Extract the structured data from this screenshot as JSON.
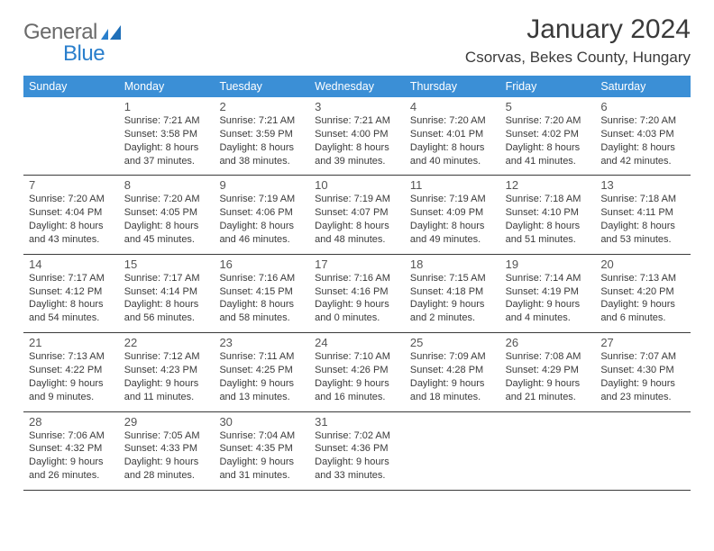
{
  "logo": {
    "text1": "General",
    "text2": "Blue"
  },
  "title": "January 2024",
  "location": "Csorvas, Bekes County, Hungary",
  "dayHeaders": [
    "Sunday",
    "Monday",
    "Tuesday",
    "Wednesday",
    "Thursday",
    "Friday",
    "Saturday"
  ],
  "style": {
    "headerBg": "#3b8fd6",
    "headerFg": "#ffffff",
    "rowBorder": "#3b3b3b",
    "textColor": "#3a3a3a",
    "dayNumColor": "#555555",
    "logoGray": "#6a6a6a",
    "logoBlue": "#2a7fcc",
    "titleFontSize": 30,
    "locationFontSize": 17,
    "headerFontSize": 12.5,
    "bodyFontSize": 11
  },
  "weeks": [
    [
      {
        "n": "",
        "lines": []
      },
      {
        "n": "1",
        "lines": [
          "Sunrise: 7:21 AM",
          "Sunset: 3:58 PM",
          "Daylight: 8 hours",
          "and 37 minutes."
        ]
      },
      {
        "n": "2",
        "lines": [
          "Sunrise: 7:21 AM",
          "Sunset: 3:59 PM",
          "Daylight: 8 hours",
          "and 38 minutes."
        ]
      },
      {
        "n": "3",
        "lines": [
          "Sunrise: 7:21 AM",
          "Sunset: 4:00 PM",
          "Daylight: 8 hours",
          "and 39 minutes."
        ]
      },
      {
        "n": "4",
        "lines": [
          "Sunrise: 7:20 AM",
          "Sunset: 4:01 PM",
          "Daylight: 8 hours",
          "and 40 minutes."
        ]
      },
      {
        "n": "5",
        "lines": [
          "Sunrise: 7:20 AM",
          "Sunset: 4:02 PM",
          "Daylight: 8 hours",
          "and 41 minutes."
        ]
      },
      {
        "n": "6",
        "lines": [
          "Sunrise: 7:20 AM",
          "Sunset: 4:03 PM",
          "Daylight: 8 hours",
          "and 42 minutes."
        ]
      }
    ],
    [
      {
        "n": "7",
        "lines": [
          "Sunrise: 7:20 AM",
          "Sunset: 4:04 PM",
          "Daylight: 8 hours",
          "and 43 minutes."
        ]
      },
      {
        "n": "8",
        "lines": [
          "Sunrise: 7:20 AM",
          "Sunset: 4:05 PM",
          "Daylight: 8 hours",
          "and 45 minutes."
        ]
      },
      {
        "n": "9",
        "lines": [
          "Sunrise: 7:19 AM",
          "Sunset: 4:06 PM",
          "Daylight: 8 hours",
          "and 46 minutes."
        ]
      },
      {
        "n": "10",
        "lines": [
          "Sunrise: 7:19 AM",
          "Sunset: 4:07 PM",
          "Daylight: 8 hours",
          "and 48 minutes."
        ]
      },
      {
        "n": "11",
        "lines": [
          "Sunrise: 7:19 AM",
          "Sunset: 4:09 PM",
          "Daylight: 8 hours",
          "and 49 minutes."
        ]
      },
      {
        "n": "12",
        "lines": [
          "Sunrise: 7:18 AM",
          "Sunset: 4:10 PM",
          "Daylight: 8 hours",
          "and 51 minutes."
        ]
      },
      {
        "n": "13",
        "lines": [
          "Sunrise: 7:18 AM",
          "Sunset: 4:11 PM",
          "Daylight: 8 hours",
          "and 53 minutes."
        ]
      }
    ],
    [
      {
        "n": "14",
        "lines": [
          "Sunrise: 7:17 AM",
          "Sunset: 4:12 PM",
          "Daylight: 8 hours",
          "and 54 minutes."
        ]
      },
      {
        "n": "15",
        "lines": [
          "Sunrise: 7:17 AM",
          "Sunset: 4:14 PM",
          "Daylight: 8 hours",
          "and 56 minutes."
        ]
      },
      {
        "n": "16",
        "lines": [
          "Sunrise: 7:16 AM",
          "Sunset: 4:15 PM",
          "Daylight: 8 hours",
          "and 58 minutes."
        ]
      },
      {
        "n": "17",
        "lines": [
          "Sunrise: 7:16 AM",
          "Sunset: 4:16 PM",
          "Daylight: 9 hours",
          "and 0 minutes."
        ]
      },
      {
        "n": "18",
        "lines": [
          "Sunrise: 7:15 AM",
          "Sunset: 4:18 PM",
          "Daylight: 9 hours",
          "and 2 minutes."
        ]
      },
      {
        "n": "19",
        "lines": [
          "Sunrise: 7:14 AM",
          "Sunset: 4:19 PM",
          "Daylight: 9 hours",
          "and 4 minutes."
        ]
      },
      {
        "n": "20",
        "lines": [
          "Sunrise: 7:13 AM",
          "Sunset: 4:20 PM",
          "Daylight: 9 hours",
          "and 6 minutes."
        ]
      }
    ],
    [
      {
        "n": "21",
        "lines": [
          "Sunrise: 7:13 AM",
          "Sunset: 4:22 PM",
          "Daylight: 9 hours",
          "and 9 minutes."
        ]
      },
      {
        "n": "22",
        "lines": [
          "Sunrise: 7:12 AM",
          "Sunset: 4:23 PM",
          "Daylight: 9 hours",
          "and 11 minutes."
        ]
      },
      {
        "n": "23",
        "lines": [
          "Sunrise: 7:11 AM",
          "Sunset: 4:25 PM",
          "Daylight: 9 hours",
          "and 13 minutes."
        ]
      },
      {
        "n": "24",
        "lines": [
          "Sunrise: 7:10 AM",
          "Sunset: 4:26 PM",
          "Daylight: 9 hours",
          "and 16 minutes."
        ]
      },
      {
        "n": "25",
        "lines": [
          "Sunrise: 7:09 AM",
          "Sunset: 4:28 PM",
          "Daylight: 9 hours",
          "and 18 minutes."
        ]
      },
      {
        "n": "26",
        "lines": [
          "Sunrise: 7:08 AM",
          "Sunset: 4:29 PM",
          "Daylight: 9 hours",
          "and 21 minutes."
        ]
      },
      {
        "n": "27",
        "lines": [
          "Sunrise: 7:07 AM",
          "Sunset: 4:30 PM",
          "Daylight: 9 hours",
          "and 23 minutes."
        ]
      }
    ],
    [
      {
        "n": "28",
        "lines": [
          "Sunrise: 7:06 AM",
          "Sunset: 4:32 PM",
          "Daylight: 9 hours",
          "and 26 minutes."
        ]
      },
      {
        "n": "29",
        "lines": [
          "Sunrise: 7:05 AM",
          "Sunset: 4:33 PM",
          "Daylight: 9 hours",
          "and 28 minutes."
        ]
      },
      {
        "n": "30",
        "lines": [
          "Sunrise: 7:04 AM",
          "Sunset: 4:35 PM",
          "Daylight: 9 hours",
          "and 31 minutes."
        ]
      },
      {
        "n": "31",
        "lines": [
          "Sunrise: 7:02 AM",
          "Sunset: 4:36 PM",
          "Daylight: 9 hours",
          "and 33 minutes."
        ]
      },
      {
        "n": "",
        "lines": []
      },
      {
        "n": "",
        "lines": []
      },
      {
        "n": "",
        "lines": []
      }
    ]
  ]
}
